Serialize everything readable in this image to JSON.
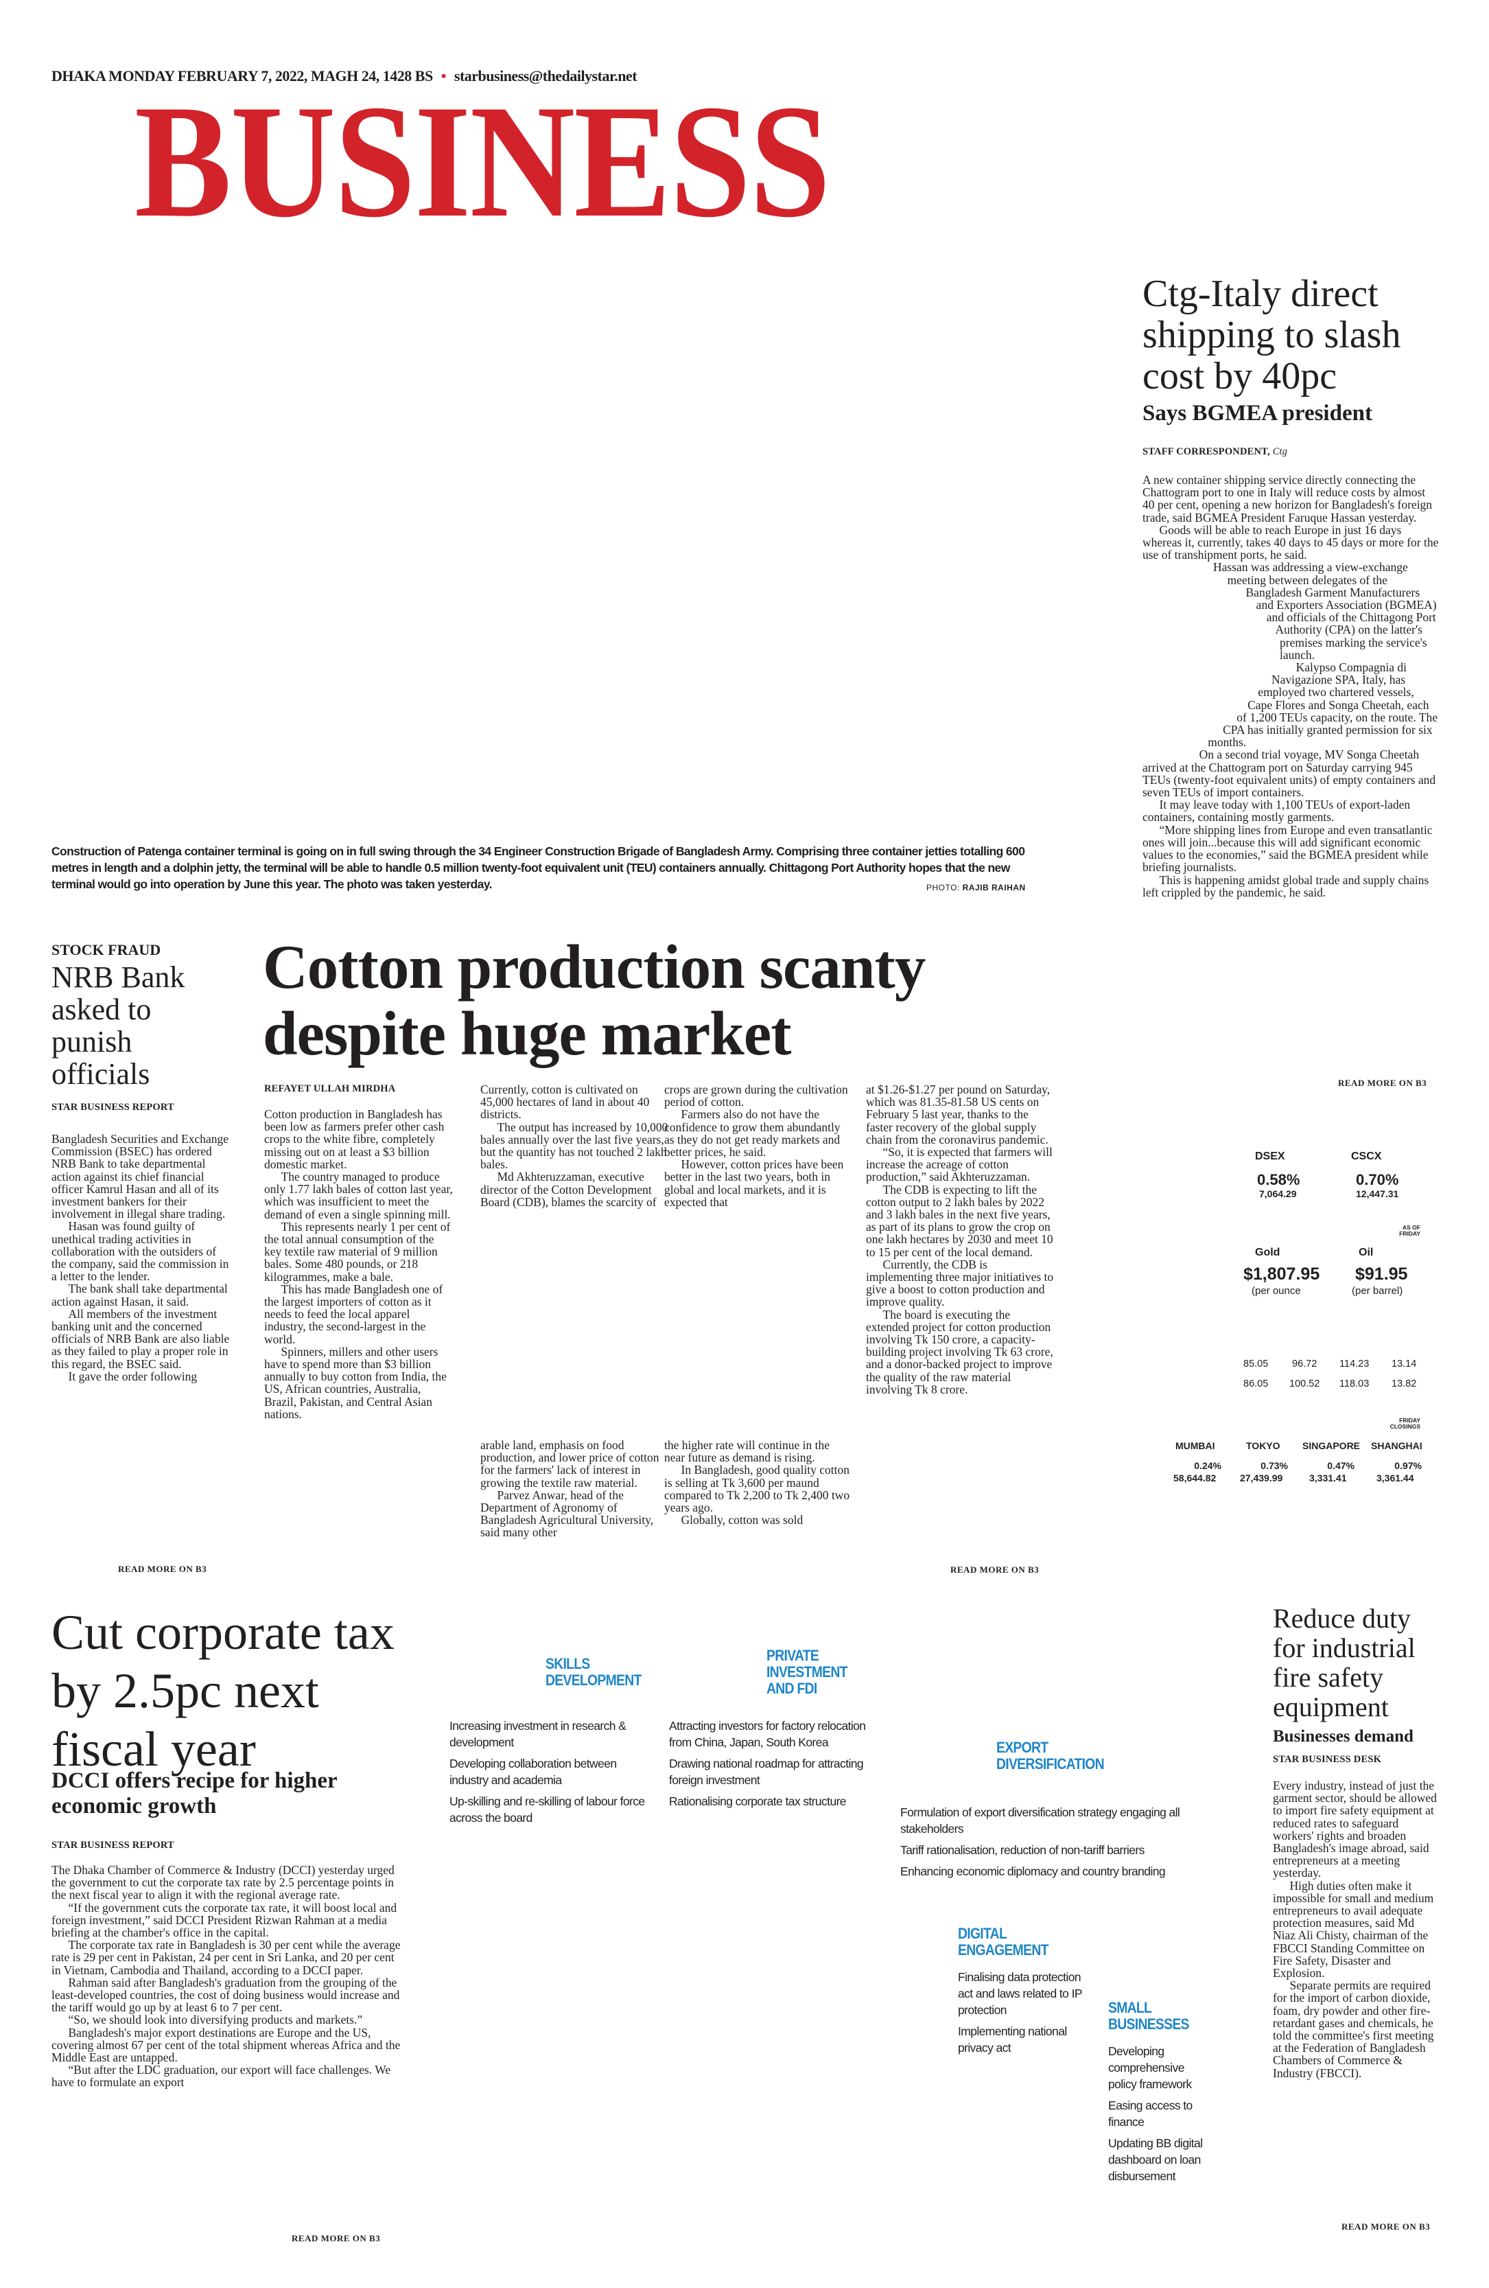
{
  "header": {
    "dateline": "DHAKA MONDAY FEBRUARY 7, 2022, MAGH 24, 1428 BS",
    "separator": "•",
    "email": "starbusiness@thedailystar.net",
    "masthead": "BUSINESS",
    "brand_color": "#d2232a"
  },
  "photo": {
    "caption": "Construction of Patenga container terminal is going on in full swing through the 34 Engineer Construction Brigade of Bangladesh Army. Comprising three container jetties totalling 600 metres in length and a dolphin jetty, the terminal will be able to handle 0.5 million twenty-foot equivalent unit (TEU) containers annually. Chittagong Port Authority hopes that the new terminal would go into operation by June this year. The photo was taken yesterday.",
    "credit_label": "PHOTO:",
    "credit_name": "RAJIB RAIHAN"
  },
  "ctg_article": {
    "headline": "Ctg-Italy direct shipping to slash cost by 40pc",
    "subhead": "Says BGMEA president",
    "byline": "STAFF CORRESPONDENT,",
    "location": "Ctg",
    "paragraphs_top": [
      "A new container shipping service directly connecting the Chattogram port to one in Italy will reduce costs by almost 40 per cent, opening a new horizon for Bangladesh's foreign trade, said BGMEA President Faruque Hassan yesterday.",
      "Goods will be able to reach Europe in just 16 days whereas it, currently, takes 40 days to 45 days or more for the use of transhipment ports, he said."
    ],
    "paragraphs_wrap": [
      "Hassan was addressing a view-exchange meeting between delegates of the Bangladesh Garment Manufacturers and Exporters Association (BGMEA) and officials of the Chittagong Port Authority (CPA) on the latter's premises marking the service's launch.",
      "Kalypso Compagnia di Navigazione SPA, Italy, has employed two chartered vessels, Cape Flores and Songa Cheetah, each of 1,200 TEUs capacity, on the route. The CPA has initially granted permission for six months.",
      "On a second trial voyage, MV Songa Cheetah arrived at the Chattogram port on Saturday carrying 945 TEUs (twenty-foot equivalent units) of empty containers and seven TEUs of import containers.",
      "It may leave today with 1,100 TEUs of export-laden containers, containing mostly garments.",
      "“More shipping lines from Europe and even transatlantic ones will join...because this will add significant economic values to the economies,” said the BGMEA president while briefing journalists.",
      "This is happening amidst global trade and supply chains left crippled by the pandemic, he said."
    ],
    "read_more": "READ MORE ON B3"
  },
  "markets": {
    "dsex": {
      "label": "DSEX",
      "change": "0.58%",
      "value": "7,064.29"
    },
    "cscx": {
      "label": "CSCX",
      "change": "0.70%",
      "value": "12,447.31"
    },
    "as_of": [
      "AS OF",
      "FRIDAY"
    ],
    "gold": {
      "label": "Gold",
      "price": "$1,807.95",
      "unit": "(per ounce"
    },
    "oil": {
      "label": "Oil",
      "price": "$91.95",
      "unit": "(per barrel)"
    },
    "currency_rows": [
      [
        "85.05",
        "96.72",
        "114.23",
        "13.14"
      ],
      [
        "86.05",
        "100.52",
        "118.03",
        "13.82"
      ]
    ],
    "closings_note": [
      "FRIDAY",
      "CLOSINGS"
    ],
    "asian_markets": [
      {
        "city": "MUMBAI",
        "change": "0.24%",
        "value": "58,644.82"
      },
      {
        "city": "TOKYO",
        "change": "0.73%",
        "value": "27,439.99"
      },
      {
        "city": "SINGAPORE",
        "change": "0.47%",
        "value": "3,331.41"
      },
      {
        "city": "SHANGHAI",
        "change": "0.97%",
        "value": "3,361.44"
      }
    ]
  },
  "nrb_article": {
    "kicker": "STOCK FRAUD",
    "headline": "NRB Bank asked to punish officials",
    "byline": "STAR BUSINESS REPORT",
    "paragraphs": [
      "Bangladesh Securities and Exchange Commission (BSEC) has ordered NRB Bank to take departmental action against its chief financial officer Kamrul Hasan and all of its investment bankers for their involvement in illegal share trading.",
      "Hasan was found guilty of unethical trading activities in collaboration with the outsiders of the company, said the commission in a letter to the lender.",
      "The bank shall take departmental action against Hasan, it said.",
      "All members of the investment banking unit and the concerned officials of NRB Bank are also liable as they failed to play a proper role in this regard, the BSEC said.",
      "It gave the order following"
    ],
    "read_more": "READ MORE ON B3"
  },
  "cotton_article": {
    "headline": "Cotton production scanty despite huge market",
    "byline": "REFAYET ULLAH MIRDHA",
    "col1": [
      "Cotton production in Bangladesh has been low as farmers prefer other cash crops to the white fibre, completely missing out on at least a $3 billion domestic market.",
      "The country managed to produce only 1.77 lakh bales of cotton last year, which was insufficient to meet the demand of even a single spinning mill.",
      "This represents nearly 1 per cent of the total annual consumption of the key textile raw material of 9 million bales. Some 480 pounds, or 218 kilogrammes, make a bale.",
      "This has made Bangladesh one of the largest importers of cotton as it needs to feed the local apparel industry, the second-largest in the world.",
      "Spinners, millers and other users have to spend more than $3 billion annually to buy cotton from India, the US, African countries, Australia, Brazil, Pakistan, and Central Asian nations."
    ],
    "col2_top": [
      "Currently, cotton is cultivated on 45,000 hectares of land in about 40 districts.",
      "The output has increased by 10,000 bales annually over the last five years, but the quantity has not touched 2 lakh bales.",
      "Md Akhteruzzaman, executive director of the Cotton Development Board (CDB), blames the scarcity of"
    ],
    "col2_bottom": [
      "arable land, emphasis on food production, and lower price of cotton for the farmers' lack of interest in growing the textile raw material.",
      "Parvez Anwar, head of the Department of Agronomy of Bangladesh Agricultural University, said many other"
    ],
    "col3_top": [
      "crops are grown during the cultivation period of cotton.",
      "Farmers also do not have the confidence to grow them abundantly as they do not get ready markets and better prices, he said.",
      "However, cotton prices have been better in the last two years, both in global and local markets, and it is expected that"
    ],
    "col3_bottom": [
      "the higher rate will continue in the near future as demand is rising.",
      "In Bangladesh, good quality cotton is selling at Tk 3,600 per maund compared to Tk 2,200 to Tk 2,400 two years ago.",
      "Globally, cotton was sold"
    ],
    "col4": [
      "at $1.26-$1.27 per pound on Saturday, which was 81.35-81.58 US cents on February 5 last year, thanks to the faster recovery of the global supply chain from the coronavirus pandemic.",
      "“So, it is expected that farmers will increase the acreage of cotton production,” said Akhteruzzaman.",
      "The CDB is expecting to lift the cotton output to 2 lakh bales by 2022 and 3 lakh bales in the next five years, as part of its plans to grow the crop on one lakh hectares by 2030 and meet 10 to 15 per cent of the local demand.",
      "Currently, the CDB is implementing three major initiatives to give a boost to cotton production and improve quality.",
      "The board is executing the extended project for cotton production involving Tk 150 crore, a capacity-building project involving Tk 63 crore, and a donor-backed project to improve the quality of the raw material involving Tk 8 crore."
    ],
    "read_more": "READ MORE ON B3"
  },
  "dcci_article": {
    "headline": "Cut corporate tax by 2.5pc next fiscal year",
    "subhead": "DCCI offers recipe for higher economic growth",
    "byline": "STAR BUSINESS REPORT",
    "paragraphs": [
      "The Dhaka Chamber of Commerce & Industry (DCCI) yesterday urged the government to cut the corporate tax rate by 2.5 percentage points in the next fiscal year to align it with the regional average rate.",
      "“If the government cuts the corporate tax rate, it will boost local and foreign investment,” said DCCI President Rizwan Rahman at a media briefing at the chamber's office in the capital.",
      "The corporate tax rate in Bangladesh is 30 per cent while the average rate is 29 per cent in Pakistan, 24 per cent in Sri Lanka, and 20 per cent in Vietnam, Cambodia and Thailand, according to a DCCI paper.",
      "Rahman said after Bangladesh's graduation from the grouping of the least-developed countries, the cost of doing business would increase and the tariff would go up by at least 6 to 7 per cent.",
      "“So, we should look into diversifying products and markets.”",
      "Bangladesh's major export destinations are Europe and the US, covering almost 67 per cent of the total shipment whereas Africa and the Middle East are untapped.",
      "“But after the LDC graduation, our export will face challenges. We have to formulate an export"
    ],
    "read_more": "READ MORE ON B3"
  },
  "infographic": {
    "accent_color": "#1f86c8",
    "sections": [
      {
        "title": "SKILLS DEVELOPMENT",
        "items": [
          "Increasing investment in research & development",
          "Developing collaboration between industry and academia",
          "Up-skilling and re-skilling of labour force across the board"
        ]
      },
      {
        "title": "PRIVATE INVESTMENT AND FDI",
        "items": [
          "Attracting investors for factory relocation from China, Japan, South Korea",
          "Drawing national roadmap for attracting foreign investment",
          "Rationalising corporate tax structure"
        ]
      },
      {
        "title": "EXPORT DIVERSIFICATION",
        "items": [
          "Formulation of export diversification strategy engaging all stakeholders",
          "Tariff rationalisation, reduction of non-tariff barriers",
          "Enhancing economic diplomacy and country branding"
        ]
      },
      {
        "title": "DIGITAL ENGAGEMENT",
        "items": [
          "Finalising data protection act and laws related to IP protection",
          "Implementing national privacy act"
        ]
      },
      {
        "title": "SMALL BUSINESSES",
        "items": [
          "Developing comprehensive policy framework",
          "Easing access to finance",
          "Updating BB digital dashboard on loan disbursement"
        ]
      }
    ]
  },
  "fire_article": {
    "headline": "Reduce duty for industrial fire safety equipment",
    "subhead": "Businesses demand",
    "byline": "STAR BUSINESS DESK",
    "paragraphs": [
      "Every industry, instead of just the garment sector, should be allowed to import fire safety equipment at reduced rates to safeguard workers' rights and broaden Bangladesh's image abroad, said entrepreneurs at a meeting yesterday.",
      "High duties often make it impossible for small and medium entrepreneurs to avail adequate protection measures, said Md Niaz Ali Chisty, chairman of the FBCCI Standing Committee on Fire Safety, Disaster and Explosion.",
      "Separate permits are required for the import of carbon dioxide, foam, dry powder and other fire-retardant gases and chemicals, he told the committee's first meeting at the Federation of Bangladesh Chambers of Commerce & Industry (FBCCI)."
    ],
    "read_more": "READ MORE ON B3"
  }
}
